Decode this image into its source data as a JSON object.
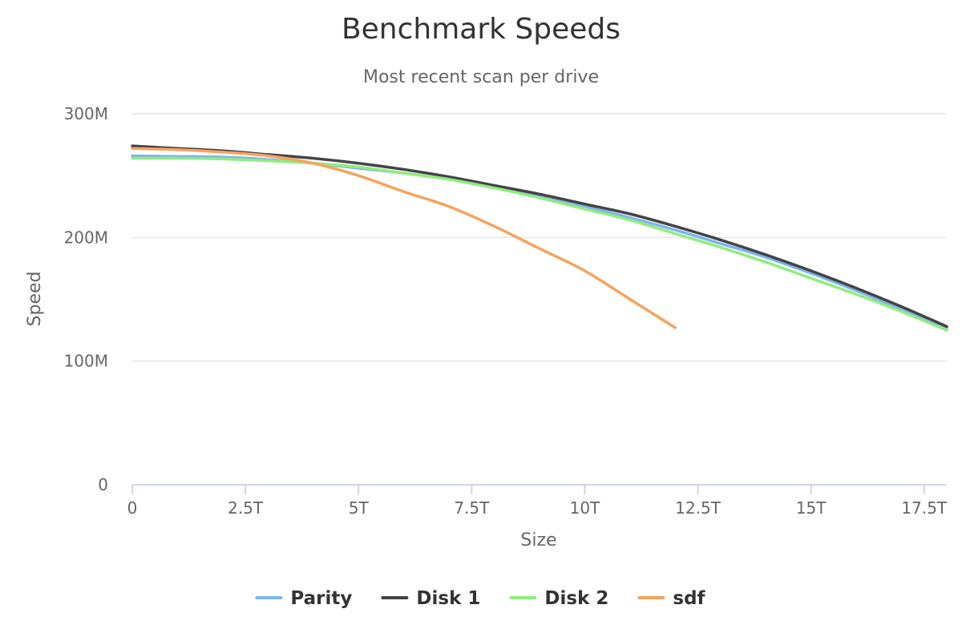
{
  "chart_data": {
    "type": "line",
    "title": "Benchmark Speeds",
    "subtitle": "Most recent scan per drive",
    "xlabel": "Size",
    "ylabel": "Speed",
    "xlim": [
      0,
      18
    ],
    "ylim": [
      0,
      300
    ],
    "x_ticks": [
      {
        "value": 0,
        "label": "0"
      },
      {
        "value": 2.5,
        "label": "2.5T"
      },
      {
        "value": 5,
        "label": "5T"
      },
      {
        "value": 7.5,
        "label": "7.5T"
      },
      {
        "value": 10,
        "label": "10T"
      },
      {
        "value": 12.5,
        "label": "12.5T"
      },
      {
        "value": 15,
        "label": "15T"
      },
      {
        "value": 17.5,
        "label": "17.5T"
      }
    ],
    "y_ticks": [
      {
        "value": 0,
        "label": "0"
      },
      {
        "value": 100,
        "label": "100M"
      },
      {
        "value": 200,
        "label": "200M"
      },
      {
        "value": 300,
        "label": "300M"
      }
    ],
    "grid": true,
    "legend_position": "bottom",
    "series": [
      {
        "name": "Parity",
        "color": "#7cb5ec",
        "x": [
          0,
          1,
          2,
          3,
          4,
          5,
          6,
          7,
          8,
          9,
          10,
          11,
          12,
          13,
          14,
          15,
          16,
          17,
          18
        ],
        "y": [
          266,
          265.5,
          265,
          263,
          260,
          256,
          252,
          247,
          240,
          233,
          225,
          216,
          206,
          195,
          184,
          171,
          157,
          142,
          127
        ]
      },
      {
        "name": "Disk 1",
        "color": "#434348",
        "x": [
          0,
          1,
          2,
          3,
          4,
          5,
          6,
          7,
          8,
          9,
          10,
          11,
          12,
          13,
          14,
          15,
          16,
          17,
          18
        ],
        "y": [
          274,
          272,
          270,
          267,
          264,
          260,
          255,
          249,
          242,
          235,
          227,
          219,
          209,
          198,
          186,
          173,
          159,
          144,
          128
        ]
      },
      {
        "name": "Disk 2",
        "color": "#90ed7d",
        "x": [
          0,
          1,
          2,
          3,
          4,
          5,
          6,
          7,
          8,
          9,
          10,
          11,
          12,
          13,
          14,
          15,
          16,
          17,
          18
        ],
        "y": [
          264,
          264,
          263.5,
          262,
          260,
          257,
          252,
          247,
          240,
          232,
          223,
          214,
          203,
          192,
          180,
          167,
          154,
          140,
          125
        ]
      },
      {
        "name": "sdf",
        "color": "#f7a35c",
        "x": [
          0,
          1,
          2,
          3,
          4,
          5,
          6,
          7,
          8,
          9,
          10,
          11,
          12
        ],
        "y": [
          272,
          271,
          269,
          266,
          260,
          250,
          237,
          225,
          209,
          191,
          173,
          150,
          127
        ]
      }
    ]
  }
}
